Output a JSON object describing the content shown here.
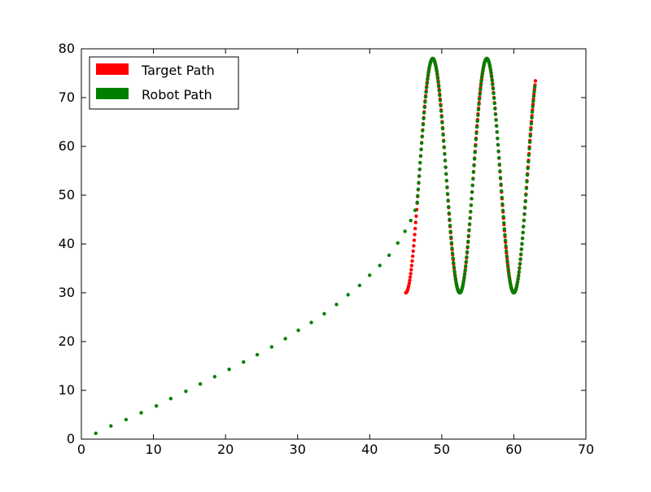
{
  "chart_data": {
    "type": "scatter",
    "title": "",
    "xlabel": "",
    "ylabel": "",
    "xlim": [
      0,
      70
    ],
    "ylim": [
      0,
      80
    ],
    "xticks": [
      0,
      10,
      20,
      30,
      40,
      50,
      60,
      70
    ],
    "yticks": [
      0,
      10,
      20,
      30,
      40,
      50,
      60,
      70,
      80
    ],
    "grid": false,
    "legend": "top-left",
    "series": [
      {
        "name": "Target Path",
        "color": "#ff0000",
        "description_of_curve": "sinusoid x from 45 to 63, y = 54 - 24*cos(2*pi*(x-45)/7.5)",
        "x_start": 45,
        "x_end": 63,
        "samples": 260
      },
      {
        "name": "Robot Path",
        "color": "#008000",
        "approach_points": [
          [
            2.0,
            1.2
          ],
          [
            4.1,
            2.7
          ],
          [
            6.2,
            4.0
          ],
          [
            8.3,
            5.4
          ],
          [
            10.4,
            6.8
          ],
          [
            12.4,
            8.3
          ],
          [
            14.5,
            9.8
          ],
          [
            16.5,
            11.3
          ],
          [
            18.5,
            12.8
          ],
          [
            20.5,
            14.3
          ],
          [
            22.5,
            15.8
          ],
          [
            24.4,
            17.3
          ],
          [
            26.4,
            18.9
          ],
          [
            28.3,
            20.6
          ],
          [
            30.1,
            22.3
          ],
          [
            31.9,
            23.9
          ],
          [
            33.7,
            25.7
          ],
          [
            35.4,
            27.6
          ],
          [
            37.0,
            29.6
          ],
          [
            38.6,
            31.5
          ],
          [
            40.0,
            33.6
          ],
          [
            41.4,
            35.6
          ],
          [
            42.7,
            37.7
          ],
          [
            43.9,
            40.2
          ],
          [
            44.9,
            42.6
          ],
          [
            45.7,
            44.8
          ],
          [
            46.3,
            46.9
          ],
          [
            46.6,
            48.5
          ]
        ],
        "x_start": 46.6,
        "x_end": 62.9,
        "samples": 240
      }
    ]
  }
}
